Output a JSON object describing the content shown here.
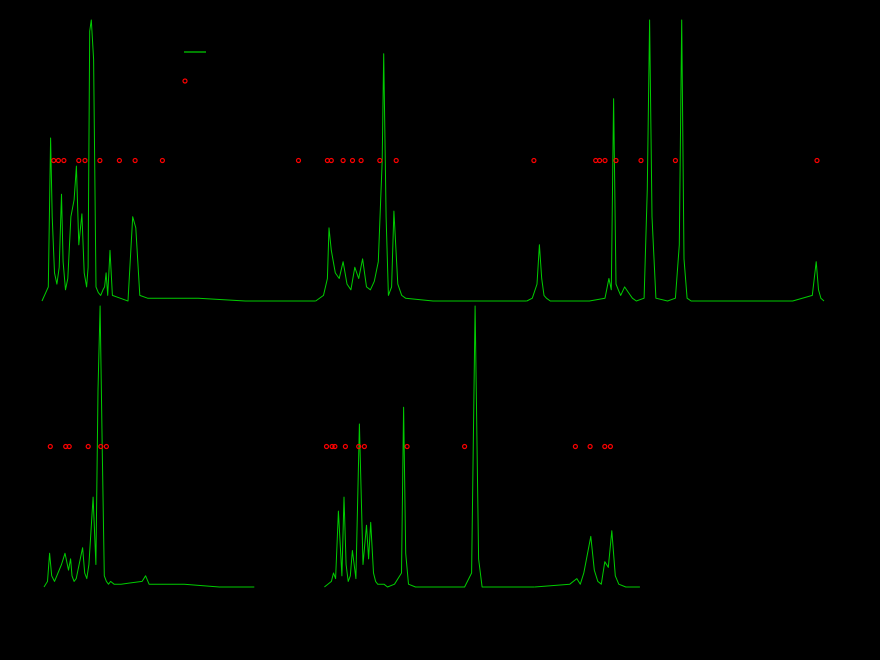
{
  "chart_data": {
    "type": "line",
    "background": "#000000",
    "grid": false,
    "legend": {
      "placement": "top-left",
      "entries": [
        {
          "marker": "line",
          "color": "#00cc00",
          "label": ""
        },
        {
          "marker": "circle",
          "color": "#ff0000",
          "label": ""
        }
      ]
    },
    "panels": [
      {
        "xlim": [
          0,
          1
        ],
        "ylim": [
          0,
          1
        ],
        "series": [
          {
            "style": "line",
            "color": "#00cc00",
            "x": [
              0.0,
              0.008,
              0.011,
              0.013,
              0.016,
              0.019,
              0.022,
              0.025,
              0.027,
              0.03,
              0.033,
              0.037,
              0.041,
              0.044,
              0.047,
              0.051,
              0.054,
              0.057,
              0.059,
              0.061,
              0.063,
              0.066,
              0.069,
              0.072,
              0.075,
              0.078,
              0.08,
              0.082,
              0.084,
              0.087,
              0.09,
              0.1,
              0.11,
              0.116,
              0.12,
              0.125,
              0.135,
              0.2,
              0.26,
              0.35
            ],
            "y": [
              0.0,
              0.05,
              0.58,
              0.3,
              0.1,
              0.06,
              0.12,
              0.38,
              0.14,
              0.04,
              0.08,
              0.3,
              0.36,
              0.48,
              0.2,
              0.31,
              0.1,
              0.05,
              0.12,
              0.96,
              1.0,
              0.86,
              0.05,
              0.03,
              0.02,
              0.04,
              0.05,
              0.1,
              0.02,
              0.18,
              0.02,
              0.01,
              0.0,
              0.3,
              0.26,
              0.02,
              0.01,
              0.01,
              0.0,
              0.0
            ]
          },
          {
            "style": "line",
            "color": "#00cc00",
            "x": [
              0.35,
              0.36,
              0.365,
              0.367,
              0.37,
              0.375,
              0.38,
              0.385,
              0.39,
              0.395,
              0.4,
              0.405,
              0.41,
              0.415,
              0.42,
              0.425,
              0.43,
              0.435,
              0.437,
              0.44,
              0.443,
              0.447,
              0.45,
              0.455,
              0.46,
              0.465,
              0.5,
              0.6,
              0.62
            ],
            "y": [
              0.0,
              0.02,
              0.08,
              0.26,
              0.18,
              0.1,
              0.08,
              0.14,
              0.06,
              0.04,
              0.12,
              0.08,
              0.15,
              0.05,
              0.04,
              0.07,
              0.14,
              0.5,
              0.88,
              0.3,
              0.02,
              0.05,
              0.32,
              0.06,
              0.02,
              0.01,
              0.0,
              0.0,
              0.0
            ]
          },
          {
            "style": "line",
            "color": "#00cc00",
            "x": [
              0.62,
              0.627,
              0.633,
              0.636,
              0.639,
              0.642,
              0.645,
              0.65,
              0.7,
              0.72,
              0.725,
              0.728,
              0.731,
              0.734,
              0.737,
              0.74,
              0.745,
              0.75,
              0.755,
              0.76,
              0.77,
              0.774,
              0.777,
              0.78,
              0.785,
              0.8,
              0.81,
              0.815,
              0.818,
              0.821,
              0.825,
              0.83,
              0.9,
              0.96,
              0.985,
              0.99,
              0.993,
              0.996,
              1.0
            ],
            "y": [
              0.0,
              0.01,
              0.06,
              0.2,
              0.08,
              0.02,
              0.01,
              0.0,
              0.0,
              0.01,
              0.08,
              0.04,
              0.72,
              0.06,
              0.04,
              0.02,
              0.05,
              0.03,
              0.01,
              0.0,
              0.01,
              0.4,
              1.0,
              0.3,
              0.01,
              0.0,
              0.01,
              0.2,
              1.0,
              0.15,
              0.01,
              0.0,
              0.0,
              0.0,
              0.02,
              0.14,
              0.04,
              0.01,
              0.0
            ]
          },
          {
            "style": "markers",
            "color": "#ff0000",
            "x": [
              0.015,
              0.021,
              0.028,
              0.047,
              0.055,
              0.074,
              0.099,
              0.119,
              0.154,
              0.328,
              0.365,
              0.37,
              0.385,
              0.397,
              0.408,
              0.432,
              0.453,
              0.629,
              0.708,
              0.713,
              0.72,
              0.734,
              0.766,
              0.81,
              0.991
            ],
            "y": [
              0.5,
              0.5,
              0.5,
              0.5,
              0.5,
              0.5,
              0.5,
              0.5,
              0.5,
              0.5,
              0.5,
              0.5,
              0.5,
              0.5,
              0.5,
              0.5,
              0.5,
              0.5,
              0.5,
              0.5,
              0.5,
              0.5,
              0.5,
              0.5,
              0.5
            ]
          }
        ]
      },
      {
        "xlim": [
          0,
          1
        ],
        "ylim": [
          0,
          1
        ],
        "series": [
          {
            "style": "line",
            "color": "#00cc00",
            "x": [
              0.0,
              0.005,
              0.008,
              0.011,
              0.015,
              0.025,
              0.03,
              0.035,
              0.038,
              0.04,
              0.043,
              0.046,
              0.05,
              0.055,
              0.058,
              0.061,
              0.064,
              0.07,
              0.074,
              0.077,
              0.08,
              0.083,
              0.086,
              0.089,
              0.092,
              0.095,
              0.1,
              0.11,
              0.14,
              0.145,
              0.15,
              0.2,
              0.25,
              0.3
            ],
            "y": [
              0.0,
              0.02,
              0.12,
              0.04,
              0.02,
              0.08,
              0.12,
              0.06,
              0.1,
              0.04,
              0.02,
              0.03,
              0.08,
              0.14,
              0.05,
              0.03,
              0.08,
              0.32,
              0.08,
              0.7,
              1.0,
              0.5,
              0.04,
              0.02,
              0.01,
              0.02,
              0.01,
              0.01,
              0.02,
              0.04,
              0.01,
              0.01,
              0.0,
              0.0
            ]
          },
          {
            "style": "line",
            "color": "#00cc00",
            "x": [
              0.4,
              0.41,
              0.413,
              0.416,
              0.42,
              0.425,
              0.428,
              0.431,
              0.434,
              0.437,
              0.44,
              0.445,
              0.45,
              0.455,
              0.46,
              0.463,
              0.466,
              0.47,
              0.473,
              0.476,
              0.48,
              0.485,
              0.49,
              0.5,
              0.51,
              0.513,
              0.516,
              0.52,
              0.53,
              0.56,
              0.6,
              0.61,
              0.615,
              0.62,
              0.625,
              0.63,
              0.7
            ],
            "y": [
              0.0,
              0.02,
              0.05,
              0.03,
              0.27,
              0.04,
              0.32,
              0.08,
              0.02,
              0.04,
              0.13,
              0.03,
              0.58,
              0.08,
              0.22,
              0.1,
              0.23,
              0.05,
              0.02,
              0.01,
              0.01,
              0.01,
              0.0,
              0.01,
              0.05,
              0.64,
              0.12,
              0.01,
              0.0,
              0.0,
              0.0,
              0.05,
              1.0,
              0.1,
              0.0,
              0.0,
              0.0
            ]
          },
          {
            "style": "line",
            "color": "#00cc00",
            "x": [
              0.7,
              0.75,
              0.76,
              0.765,
              0.77,
              0.78,
              0.785,
              0.79,
              0.795,
              0.8,
              0.805,
              0.81,
              0.815,
              0.82,
              0.83,
              0.85
            ],
            "y": [
              0.0,
              0.01,
              0.03,
              0.01,
              0.05,
              0.18,
              0.06,
              0.02,
              0.01,
              0.09,
              0.07,
              0.2,
              0.04,
              0.01,
              0.0,
              0.0
            ]
          },
          {
            "style": "markers",
            "color": "#ff0000",
            "x": [
              0.009,
              0.031,
              0.036,
              0.063,
              0.081,
              0.089,
              0.403,
              0.411,
              0.415,
              0.43,
              0.449,
              0.457,
              0.518,
              0.6,
              0.758,
              0.779,
              0.8,
              0.808
            ],
            "y": [
              0.5,
              0.5,
              0.5,
              0.5,
              0.5,
              0.5,
              0.5,
              0.5,
              0.5,
              0.5,
              0.5,
              0.5,
              0.5,
              0.5,
              0.5,
              0.5,
              0.5,
              0.5
            ]
          }
        ]
      }
    ]
  }
}
